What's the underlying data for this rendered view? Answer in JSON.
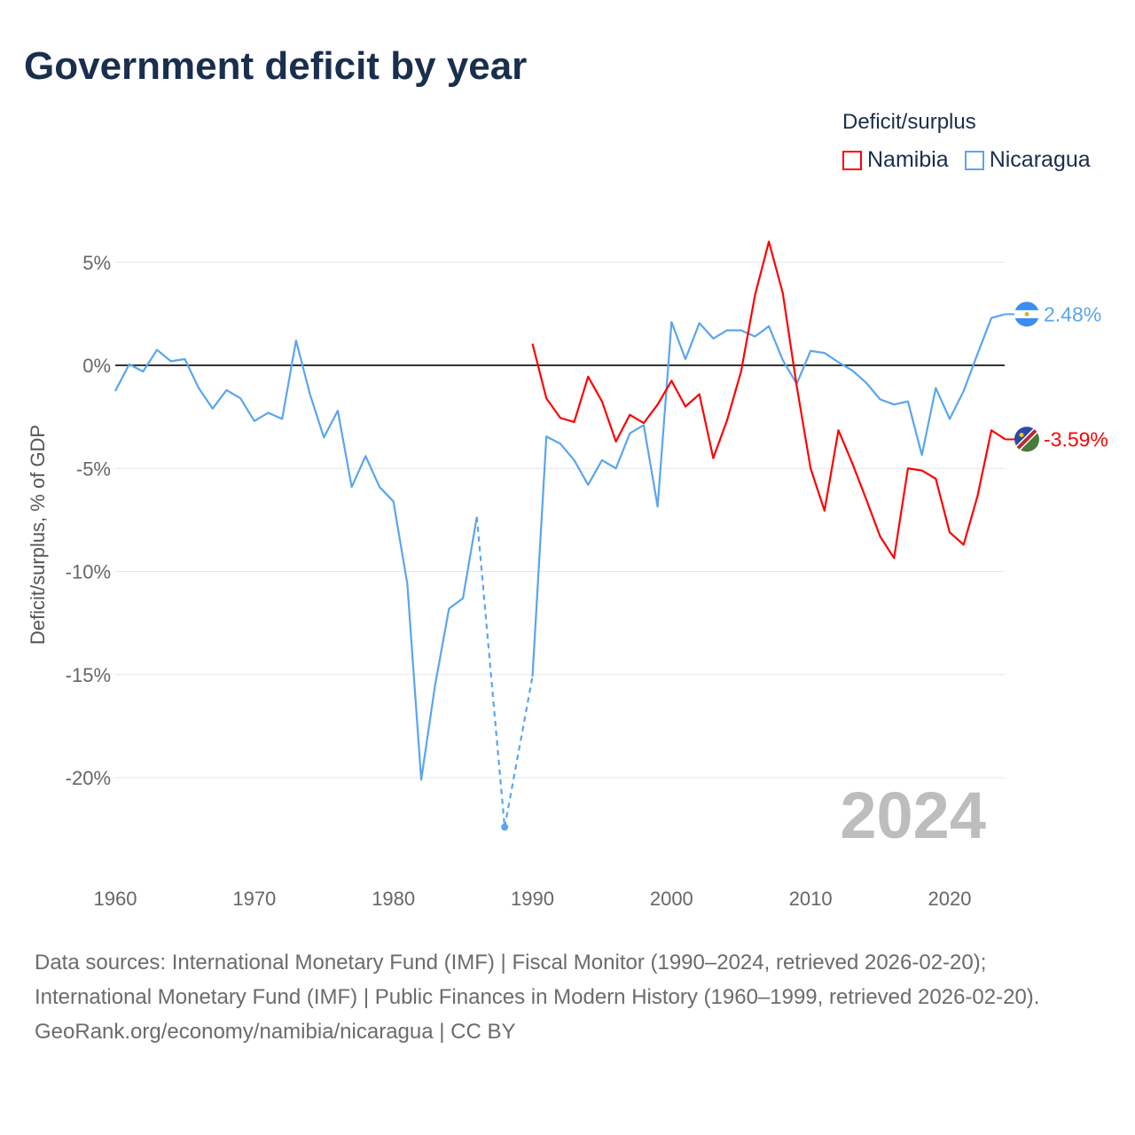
{
  "title": "Government deficit by year",
  "legend": {
    "title": "Deficit/surplus",
    "items": [
      {
        "name": "Namibia",
        "color": "#ff0000"
      },
      {
        "name": "Nicaragua",
        "color": "#5aa5ee"
      }
    ]
  },
  "year_watermark": "2024",
  "chart_data": {
    "type": "line",
    "title": "Government deficit by year",
    "xlabel": "",
    "ylabel": "Deficit/surplus, % of GDP",
    "xlim": [
      1960,
      2024
    ],
    "ylim": [
      -23.5,
      7.5
    ],
    "xticks": [
      1960,
      1970,
      1980,
      1990,
      2000,
      2010,
      2020
    ],
    "xtick_labels": [
      "1960",
      "1970",
      "1980",
      "1990",
      "2000",
      "2010",
      "2020"
    ],
    "yticks": [
      5,
      0,
      -5,
      -10,
      -15,
      -20
    ],
    "ytick_labels": [
      "5%",
      "0%",
      "-5%",
      "-10%",
      "-15%",
      "-20%"
    ],
    "grid": true,
    "legend_position": "top-right",
    "series": [
      {
        "name": "Namibia",
        "color": "#ff0000",
        "start_year": 1990,
        "end_label": "-3.59%",
        "values": [
          1.05,
          -1.6,
          -2.55,
          -2.75,
          -0.55,
          -1.75,
          -3.7,
          -2.4,
          -2.8,
          -1.9,
          -0.75,
          -2.0,
          -1.4,
          -4.5,
          -2.65,
          -0.3,
          3.4,
          6.0,
          3.5,
          -1.0,
          -5.0,
          -7.05,
          -3.15,
          -4.75,
          -6.5,
          -8.3,
          -9.35,
          -5.0,
          -5.1,
          -5.5,
          -8.1,
          -8.7,
          -6.35,
          -3.15,
          -3.59
        ]
      },
      {
        "name": "Nicaragua",
        "color": "#5aa5ee",
        "start_year": 1960,
        "end_label": "2.48%",
        "values": [
          -1.25,
          0.05,
          -0.3,
          0.75,
          0.2,
          0.3,
          -1.1,
          -2.1,
          -1.2,
          -1.6,
          -2.7,
          -2.3,
          -2.6,
          1.2,
          -1.4,
          -3.5,
          -2.2,
          -5.9,
          -4.4,
          -5.9,
          -6.6,
          -10.6,
          -20.1,
          -15.5,
          -11.8,
          -11.3,
          -7.35,
          null,
          -22.4,
          null,
          -15.1,
          -3.45,
          -3.8,
          -4.6,
          -5.8,
          -4.6,
          -5.0,
          -3.3,
          -2.9,
          -6.85,
          2.1,
          0.3,
          2.05,
          1.3,
          1.7,
          1.7,
          1.4,
          1.9,
          0.25,
          -0.9,
          0.7,
          0.6,
          0.15,
          -0.25,
          -0.85,
          -1.65,
          -1.9,
          -1.75,
          -4.35,
          -1.1,
          -2.6,
          -1.25,
          0.55,
          2.3,
          2.48
        ]
      }
    ]
  },
  "footer": {
    "sources": "Data sources: International Monetary Fund (IMF) | Fiscal Monitor (1990–2024, retrieved 2026-02-20); International Monetary Fund (IMF) | Public Finances in Modern History (1960–1999, retrieved 2026-02-20).",
    "credit": "GeoRank.org/economy/namibia/nicaragua | CC BY"
  }
}
